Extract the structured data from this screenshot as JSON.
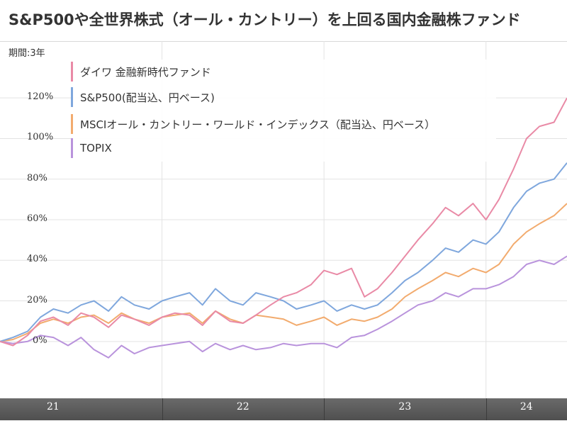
{
  "title": "S&P500や全世界株式（オール・カントリー）を上回る国内金融株ファンド",
  "period_label": "期間:3年",
  "colors": {
    "daiwa": "#e98aa6",
    "sp500": "#7fa7dd",
    "msci": "#f2ab6e",
    "topix": "#b993dc",
    "grid": "#e3e3e3",
    "axis_band": "#595959"
  },
  "chart_data": {
    "type": "line",
    "title": "S&P500や全世界株式（オール・カントリー）を上回る国内金融株ファンド",
    "xlabel": "",
    "ylabel": "",
    "x_ticks": [
      "21",
      "22",
      "23",
      "24"
    ],
    "x_range": [
      2021.0,
      2024.5
    ],
    "y_ticks": [
      "0%",
      "20%",
      "40%",
      "60%",
      "80%",
      "100%",
      "120%"
    ],
    "y_tick_values": [
      0,
      20,
      40,
      60,
      80,
      100,
      120
    ],
    "ylim": [
      -28,
      148
    ],
    "grid": true,
    "legend_position": "top-left",
    "series": [
      {
        "key": "daiwa",
        "name": "ダイワ 金融新時代ファンド",
        "x": [
          2021.0,
          2021.08,
          2021.17,
          2021.25,
          2021.33,
          2021.42,
          2021.5,
          2021.58,
          2021.67,
          2021.75,
          2021.83,
          2021.92,
          2022.0,
          2022.08,
          2022.17,
          2022.25,
          2022.33,
          2022.42,
          2022.5,
          2022.58,
          2022.67,
          2022.75,
          2022.83,
          2022.92,
          2023.0,
          2023.08,
          2023.17,
          2023.25,
          2023.33,
          2023.42,
          2023.5,
          2023.58,
          2023.67,
          2023.75,
          2023.83,
          2023.92,
          2024.0,
          2024.08,
          2024.17,
          2024.25,
          2024.33,
          2024.42,
          2024.5
        ],
        "values": [
          0,
          -2,
          3,
          10,
          12,
          8,
          14,
          12,
          7,
          13,
          11,
          8,
          12,
          14,
          13,
          8,
          15,
          10,
          9,
          13,
          18,
          22,
          24,
          28,
          35,
          33,
          36,
          22,
          26,
          34,
          42,
          50,
          58,
          66,
          62,
          68,
          60,
          70,
          85,
          100,
          106,
          108,
          120
        ]
      },
      {
        "key": "sp500",
        "name": "S&P500(配当込、円ベース)",
        "x": [
          2021.0,
          2021.08,
          2021.17,
          2021.25,
          2021.33,
          2021.42,
          2021.5,
          2021.58,
          2021.67,
          2021.75,
          2021.83,
          2021.92,
          2022.0,
          2022.08,
          2022.17,
          2022.25,
          2022.33,
          2022.42,
          2022.5,
          2022.58,
          2022.67,
          2022.75,
          2022.83,
          2022.92,
          2023.0,
          2023.08,
          2023.17,
          2023.25,
          2023.33,
          2023.42,
          2023.5,
          2023.58,
          2023.67,
          2023.75,
          2023.83,
          2023.92,
          2024.0,
          2024.08,
          2024.17,
          2024.25,
          2024.33,
          2024.42,
          2024.5
        ],
        "values": [
          0,
          2,
          5,
          12,
          16,
          14,
          18,
          20,
          15,
          22,
          18,
          16,
          20,
          22,
          24,
          18,
          26,
          20,
          18,
          24,
          22,
          20,
          16,
          18,
          20,
          15,
          18,
          16,
          18,
          24,
          30,
          34,
          40,
          46,
          44,
          50,
          48,
          54,
          66,
          74,
          78,
          80,
          88
        ]
      },
      {
        "key": "msci",
        "name": "MSCIオール・カントリー・ワールド・インデックス（配当込、円ベース）",
        "x": [
          2021.0,
          2021.08,
          2021.17,
          2021.25,
          2021.33,
          2021.42,
          2021.5,
          2021.58,
          2021.67,
          2021.75,
          2021.83,
          2021.92,
          2022.0,
          2022.08,
          2022.17,
          2022.25,
          2022.33,
          2022.42,
          2022.5,
          2022.58,
          2022.67,
          2022.75,
          2022.83,
          2022.92,
          2023.0,
          2023.08,
          2023.17,
          2023.25,
          2023.33,
          2023.42,
          2023.5,
          2023.58,
          2023.67,
          2023.75,
          2023.83,
          2023.92,
          2024.0,
          2024.08,
          2024.17,
          2024.25,
          2024.33,
          2024.42,
          2024.5
        ],
        "values": [
          0,
          1,
          4,
          9,
          11,
          9,
          12,
          13,
          9,
          14,
          11,
          9,
          12,
          13,
          14,
          9,
          15,
          11,
          9,
          13,
          12,
          11,
          8,
          10,
          12,
          8,
          11,
          10,
          12,
          16,
          22,
          26,
          30,
          34,
          32,
          36,
          34,
          38,
          48,
          54,
          58,
          62,
          68
        ]
      },
      {
        "key": "topix",
        "name": "TOPIX",
        "x": [
          2021.0,
          2021.08,
          2021.17,
          2021.25,
          2021.33,
          2021.42,
          2021.5,
          2021.58,
          2021.67,
          2021.75,
          2021.83,
          2021.92,
          2022.0,
          2022.08,
          2022.17,
          2022.25,
          2022.33,
          2022.42,
          2022.5,
          2022.58,
          2022.67,
          2022.75,
          2022.83,
          2022.92,
          2023.0,
          2023.08,
          2023.17,
          2023.25,
          2023.33,
          2023.42,
          2023.5,
          2023.58,
          2023.67,
          2023.75,
          2023.83,
          2023.92,
          2024.0,
          2024.08,
          2024.17,
          2024.25,
          2024.33,
          2024.42,
          2024.5
        ],
        "values": [
          0,
          -1,
          0,
          3,
          2,
          -2,
          2,
          -4,
          -8,
          -2,
          -6,
          -3,
          -2,
          -1,
          0,
          -5,
          -1,
          -4,
          -2,
          -4,
          -3,
          -1,
          -2,
          -1,
          -1,
          -3,
          2,
          3,
          6,
          10,
          14,
          18,
          20,
          24,
          22,
          26,
          26,
          28,
          32,
          38,
          40,
          38,
          42
        ]
      }
    ]
  }
}
